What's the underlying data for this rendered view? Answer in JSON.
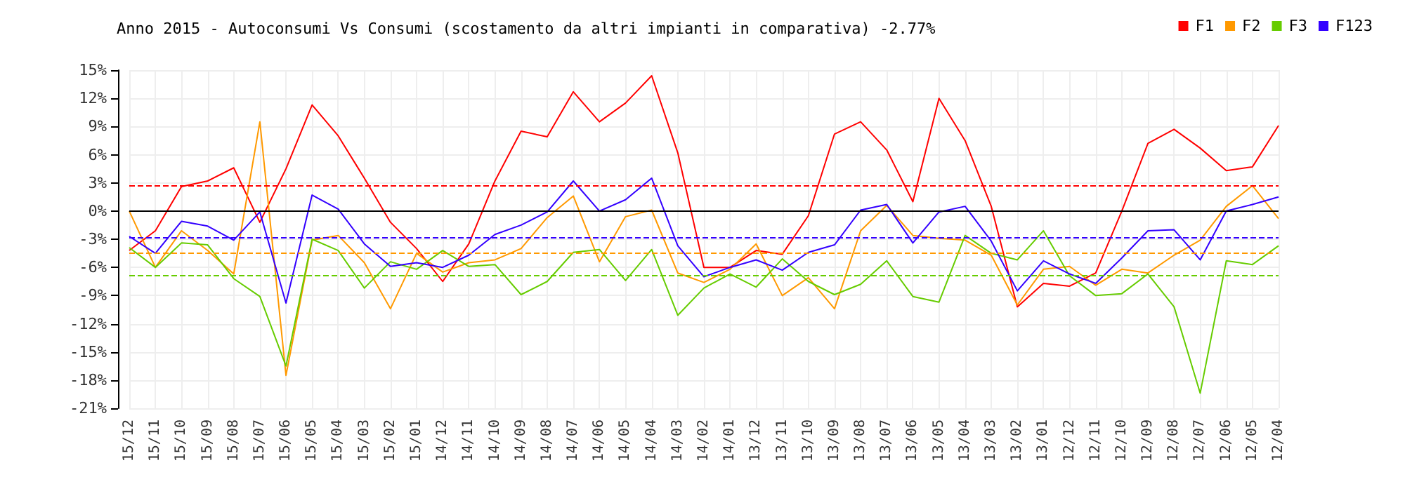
{
  "chart_data": {
    "type": "line",
    "title": "Anno 2015 - Autoconsumi Vs Consumi (scostamento da altri impianti in comparativa) -2.77%",
    "categories": [
      "15/12",
      "15/11",
      "15/10",
      "15/09",
      "15/08",
      "15/07",
      "15/06",
      "15/05",
      "15/04",
      "15/03",
      "15/02",
      "15/01",
      "14/12",
      "14/11",
      "14/10",
      "14/09",
      "14/08",
      "14/07",
      "14/06",
      "14/05",
      "14/04",
      "14/03",
      "14/02",
      "14/01",
      "13/12",
      "13/11",
      "13/10",
      "13/09",
      "13/08",
      "13/07",
      "13/06",
      "13/05",
      "13/04",
      "13/03",
      "13/02",
      "13/01",
      "12/12",
      "12/11",
      "12/10",
      "12/09",
      "12/08",
      "12/07",
      "12/06",
      "12/05",
      "12/04"
    ],
    "series": [
      {
        "name": "F1",
        "color": "#ff0000",
        "values": [
          -4.2,
          -2.1,
          2.6,
          3.2,
          4.6,
          -1.2,
          4.5,
          11.3,
          8.0,
          3.5,
          -1.2,
          -4.0,
          -7.5,
          -3.5,
          3.2,
          8.5,
          7.9,
          12.7,
          9.5,
          11.5,
          14.4,
          6.2,
          -6.0,
          -6.0,
          -4.2,
          -4.6,
          -0.5,
          8.2,
          9.5,
          6.5,
          1.0,
          12.0,
          7.5,
          0.5,
          -10.2,
          -7.7,
          -8.0,
          -6.6,
          0.0,
          7.2,
          8.7,
          6.7,
          4.3,
          4.7,
          9.1
        ]
      },
      {
        "name": "F2",
        "color": "#ff9900",
        "values": [
          0.0,
          -6.0,
          -2.1,
          -4.2,
          -6.7,
          9.5,
          -17.5,
          -3.1,
          -2.6,
          -5.5,
          -10.4,
          -4.5,
          -6.5,
          -5.5,
          -5.2,
          -4.0,
          -0.7,
          1.6,
          -5.4,
          -0.6,
          0.1,
          -6.6,
          -7.6,
          -6.2,
          -3.5,
          -9.0,
          -7.1,
          -10.4,
          -2.1,
          0.6,
          -2.6,
          -2.9,
          -3.1,
          -4.7,
          -10.0,
          -6.2,
          -5.9,
          -7.9,
          -6.2,
          -6.6,
          -4.7,
          -3.1,
          0.5,
          2.7,
          -0.8
        ]
      },
      {
        "name": "F3",
        "color": "#66cc00",
        "values": [
          -3.9,
          -6.0,
          -3.4,
          -3.6,
          -7.2,
          -9.1,
          -16.5,
          -3.0,
          -4.2,
          -8.2,
          -5.4,
          -6.2,
          -4.2,
          -5.9,
          -5.7,
          -8.9,
          -7.5,
          -4.4,
          -4.1,
          -7.4,
          -4.1,
          -11.1,
          -8.2,
          -6.7,
          -8.1,
          -5.1,
          -7.5,
          -8.9,
          -7.8,
          -5.3,
          -9.1,
          -9.7,
          -2.6,
          -4.5,
          -5.2,
          -2.1,
          -6.9,
          -9.0,
          -8.8,
          -6.7,
          -10.2,
          -19.4,
          -5.3,
          -5.7,
          -3.7
        ]
      },
      {
        "name": "F123",
        "color": "#3300ff",
        "values": [
          -2.7,
          -4.5,
          -1.1,
          -1.6,
          -3.1,
          -0.1,
          -9.8,
          1.7,
          0.2,
          -3.5,
          -5.9,
          -5.5,
          -6.0,
          -4.7,
          -2.5,
          -1.5,
          -0.1,
          3.2,
          0.0,
          1.2,
          3.5,
          -3.7,
          -7.0,
          -6.0,
          -5.2,
          -6.3,
          -4.4,
          -3.6,
          0.1,
          0.7,
          -3.4,
          -0.1,
          0.5,
          -3.2,
          -8.5,
          -5.3,
          -6.7,
          -7.7,
          -5.0,
          -2.1,
          -2.0,
          -5.2,
          0.0,
          0.7,
          1.5
        ]
      }
    ],
    "ylim": [
      -21,
      15
    ],
    "yticks": [
      {
        "value": -21,
        "label": "-21%"
      },
      {
        "value": -18,
        "label": "-18%"
      },
      {
        "value": -15,
        "label": "-15%"
      },
      {
        "value": -12,
        "label": "-12%"
      },
      {
        "value": -9,
        "label": "-9%"
      },
      {
        "value": -6,
        "label": "-6%"
      },
      {
        "value": -3,
        "label": "-3%"
      },
      {
        "value": 0,
        "label": "0%"
      },
      {
        "value": 3,
        "label": "3%"
      },
      {
        "value": 6,
        "label": "6%"
      },
      {
        "value": 9,
        "label": "9%"
      },
      {
        "value": 12,
        "label": "12%"
      },
      {
        "value": 15,
        "label": "15%"
      }
    ],
    "ref_lines": [
      {
        "axis": "y",
        "value": 0,
        "color": "#000000",
        "line_style": "solid"
      },
      {
        "axis": "y",
        "value": 2.77,
        "color": "#ff0000",
        "line_style": "dashed"
      },
      {
        "axis": "y",
        "value": -2.77,
        "color": "#3300ff",
        "line_style": "dashed"
      },
      {
        "axis": "y",
        "value": -4.4,
        "color": "#ff9900",
        "line_style": "dashed"
      },
      {
        "axis": "y",
        "value": -6.8,
        "color": "#66cc00",
        "line_style": "dashed"
      }
    ],
    "grid": true,
    "legend": "top right",
    "marker": "none",
    "line_style": "solid"
  }
}
